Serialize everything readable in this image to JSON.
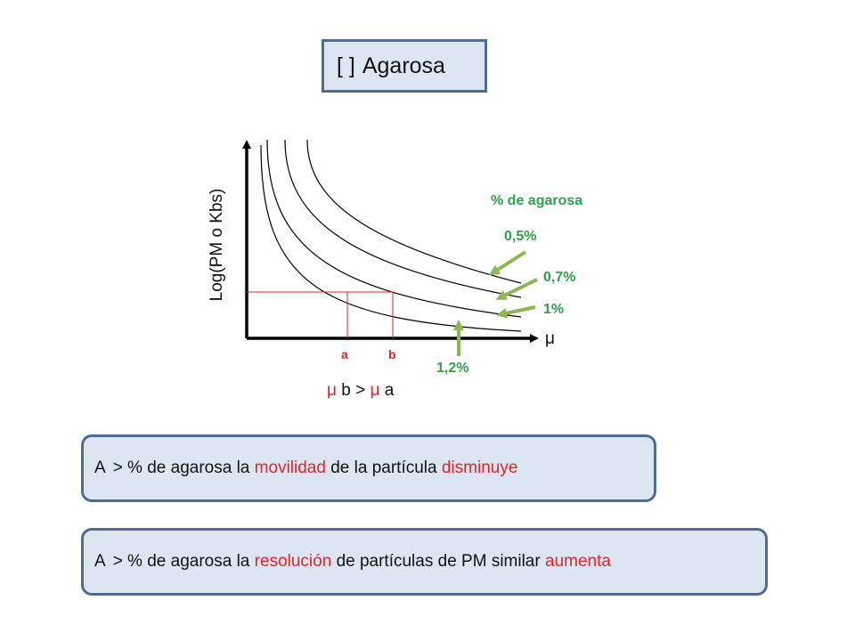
{
  "title": {
    "bracket": "[ ]",
    "text": "Agarosa"
  },
  "chart": {
    "y_axis_label": "Log(PM o Kbs)",
    "x_axis_symbol": "μ",
    "legend_title": "% de agarosa",
    "curve_labels": [
      "0,5%",
      "0,7%",
      "1%",
      "1,2%"
    ],
    "points": [
      "a",
      "b"
    ],
    "relation": {
      "mu1": "μ",
      "b": "b",
      "gt": ">",
      "mu2": "μ",
      "a": "a"
    }
  },
  "statements": [
    {
      "prefix": "A",
      "mid1": "> % de agarosa la",
      "highlight1": "movilidad",
      "mid2": "de la partícula",
      "highlight2": "disminuye"
    },
    {
      "prefix": "A",
      "mid1": "> % de agarosa la",
      "highlight1": "resolución",
      "mid2": "de partículas de PM similar",
      "highlight2": "aumenta"
    }
  ],
  "colors": {
    "accent_green": "#8db654",
    "label_green": "#2ea24a",
    "red": "#e0262b",
    "box_fill": "#dce6f2",
    "box_border": "#4f6b8f"
  }
}
